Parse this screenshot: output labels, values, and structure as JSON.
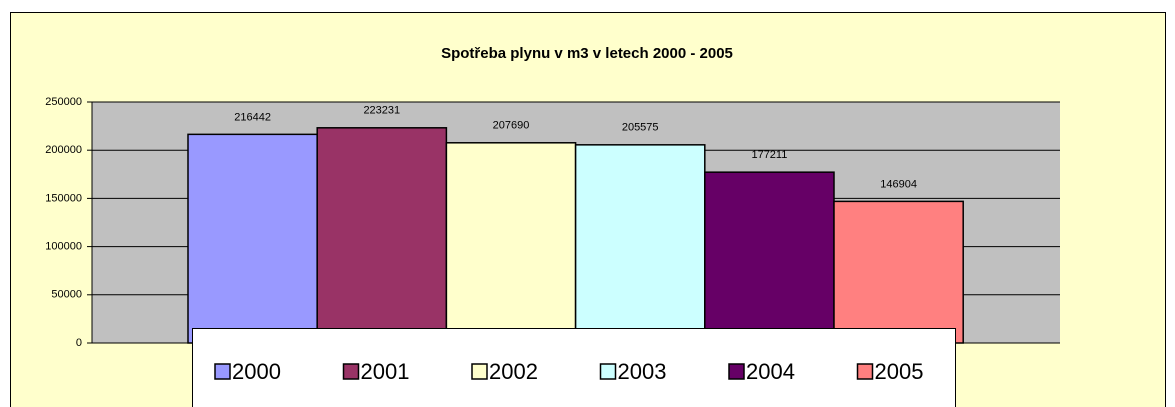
{
  "chart_data": {
    "type": "bar",
    "title": "Spotřeba plynu v m3 v letech 2000 - 2005",
    "series": [
      {
        "name": "2000",
        "color": "#9999ff",
        "values": [
          216442
        ]
      },
      {
        "name": "2001",
        "color": "#993366",
        "values": [
          223231
        ]
      },
      {
        "name": "2002",
        "color": "#ffffcc",
        "values": [
          207690
        ]
      },
      {
        "name": "2003",
        "color": "#ccffff",
        "values": [
          205575
        ]
      },
      {
        "name": "2004",
        "color": "#660066",
        "values": [
          177211
        ]
      },
      {
        "name": "2005",
        "color": "#ff8080",
        "values": [
          146904
        ]
      }
    ],
    "ylim": [
      0,
      250000
    ],
    "yticks": [
      0,
      50000,
      100000,
      150000,
      200000,
      250000
    ],
    "grid": true,
    "legend": "bottom"
  }
}
